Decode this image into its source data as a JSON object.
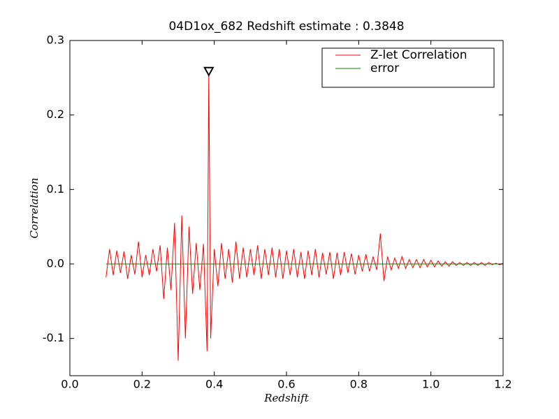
{
  "chart_data": {
    "type": "line",
    "title": "04D1ox_682 Redshift estimate : 0.3848",
    "x_label": "Redshift",
    "y_label": "Correlation",
    "xlim": [
      0,
      1.2
    ],
    "ylim": [
      -0.15,
      0.3
    ],
    "xticks": [
      {
        "value": 0,
        "label": "0.0"
      },
      0.2,
      0.4,
      0.6,
      0.8,
      {
        "value": 1,
        "label": "1.0"
      },
      1.2
    ],
    "yticks": [
      -0.1,
      {
        "value": 0,
        "label": "0.0"
      },
      0.1,
      0.2,
      0.3
    ],
    "grid": false,
    "legend": "upper right",
    "peak": {
      "x": 0.3848,
      "y": 0.258
    },
    "series": [
      {
        "name": "Z-let Correlation",
        "color": "#ff0000",
        "x": [
          0.1,
          0.11,
          0.12,
          0.13,
          0.14,
          0.15,
          0.16,
          0.17,
          0.18,
          0.19,
          0.2,
          0.21,
          0.22,
          0.23,
          0.24,
          0.25,
          0.26,
          0.27,
          0.28,
          0.29,
          0.3,
          0.31,
          0.32,
          0.33,
          0.34,
          0.35,
          0.36,
          0.37,
          0.38,
          0.3848,
          0.39,
          0.4,
          0.41,
          0.42,
          0.43,
          0.44,
          0.45,
          0.46,
          0.47,
          0.48,
          0.49,
          0.5,
          0.51,
          0.52,
          0.53,
          0.54,
          0.55,
          0.56,
          0.57,
          0.58,
          0.59,
          0.6,
          0.61,
          0.62,
          0.63,
          0.64,
          0.65,
          0.66,
          0.67,
          0.68,
          0.69,
          0.7,
          0.71,
          0.72,
          0.73,
          0.74,
          0.75,
          0.76,
          0.77,
          0.78,
          0.79,
          0.8,
          0.81,
          0.82,
          0.83,
          0.84,
          0.85,
          0.86,
          0.87,
          0.88,
          0.89,
          0.9,
          0.91,
          0.92,
          0.93,
          0.94,
          0.95,
          0.96,
          0.97,
          0.98,
          0.99,
          1.0,
          1.01,
          1.02,
          1.03,
          1.04,
          1.05,
          1.06,
          1.07,
          1.08,
          1.09,
          1.1,
          1.11,
          1.12,
          1.13,
          1.14,
          1.15,
          1.16,
          1.17,
          1.18,
          1.19,
          1.2
        ],
        "values": [
          -0.018,
          0.02,
          -0.015,
          0.018,
          -0.012,
          0.017,
          -0.02,
          0.012,
          -0.014,
          0.03,
          -0.018,
          0.012,
          -0.015,
          0.02,
          -0.01,
          0.025,
          -0.047,
          0.022,
          -0.035,
          0.055,
          -0.13,
          0.065,
          -0.1,
          0.05,
          -0.04,
          0.028,
          -0.035,
          0.027,
          -0.117,
          0.258,
          -0.1,
          0.02,
          -0.03,
          0.028,
          -0.02,
          0.02,
          -0.025,
          0.03,
          -0.02,
          0.022,
          -0.018,
          0.02,
          -0.015,
          0.025,
          -0.02,
          0.02,
          -0.015,
          0.022,
          -0.018,
          0.02,
          -0.02,
          0.018,
          -0.015,
          0.02,
          -0.018,
          0.016,
          -0.02,
          0.018,
          -0.015,
          0.02,
          -0.018,
          0.015,
          -0.014,
          0.016,
          -0.02,
          0.015,
          -0.015,
          0.016,
          -0.012,
          0.014,
          -0.014,
          0.012,
          -0.01,
          0.013,
          -0.01,
          0.01,
          -0.008,
          0.041,
          -0.023,
          0.01,
          -0.008,
          0.008,
          -0.006,
          0.01,
          -0.006,
          0.006,
          -0.005,
          0.006,
          -0.005,
          0.006,
          -0.004,
          0.005,
          -0.004,
          0.004,
          -0.003,
          0.003,
          -0.003,
          0.003,
          -0.002,
          0.002,
          -0.002,
          0.002,
          -0.002,
          0.002,
          -0.002,
          0.002,
          -0.002,
          0.002,
          -0.001,
          0.001,
          -0.001,
          0.001
        ]
      },
      {
        "name": "error",
        "color": "#008000",
        "x": [
          0.1,
          1.2
        ],
        "values": [
          0,
          0
        ]
      }
    ]
  }
}
